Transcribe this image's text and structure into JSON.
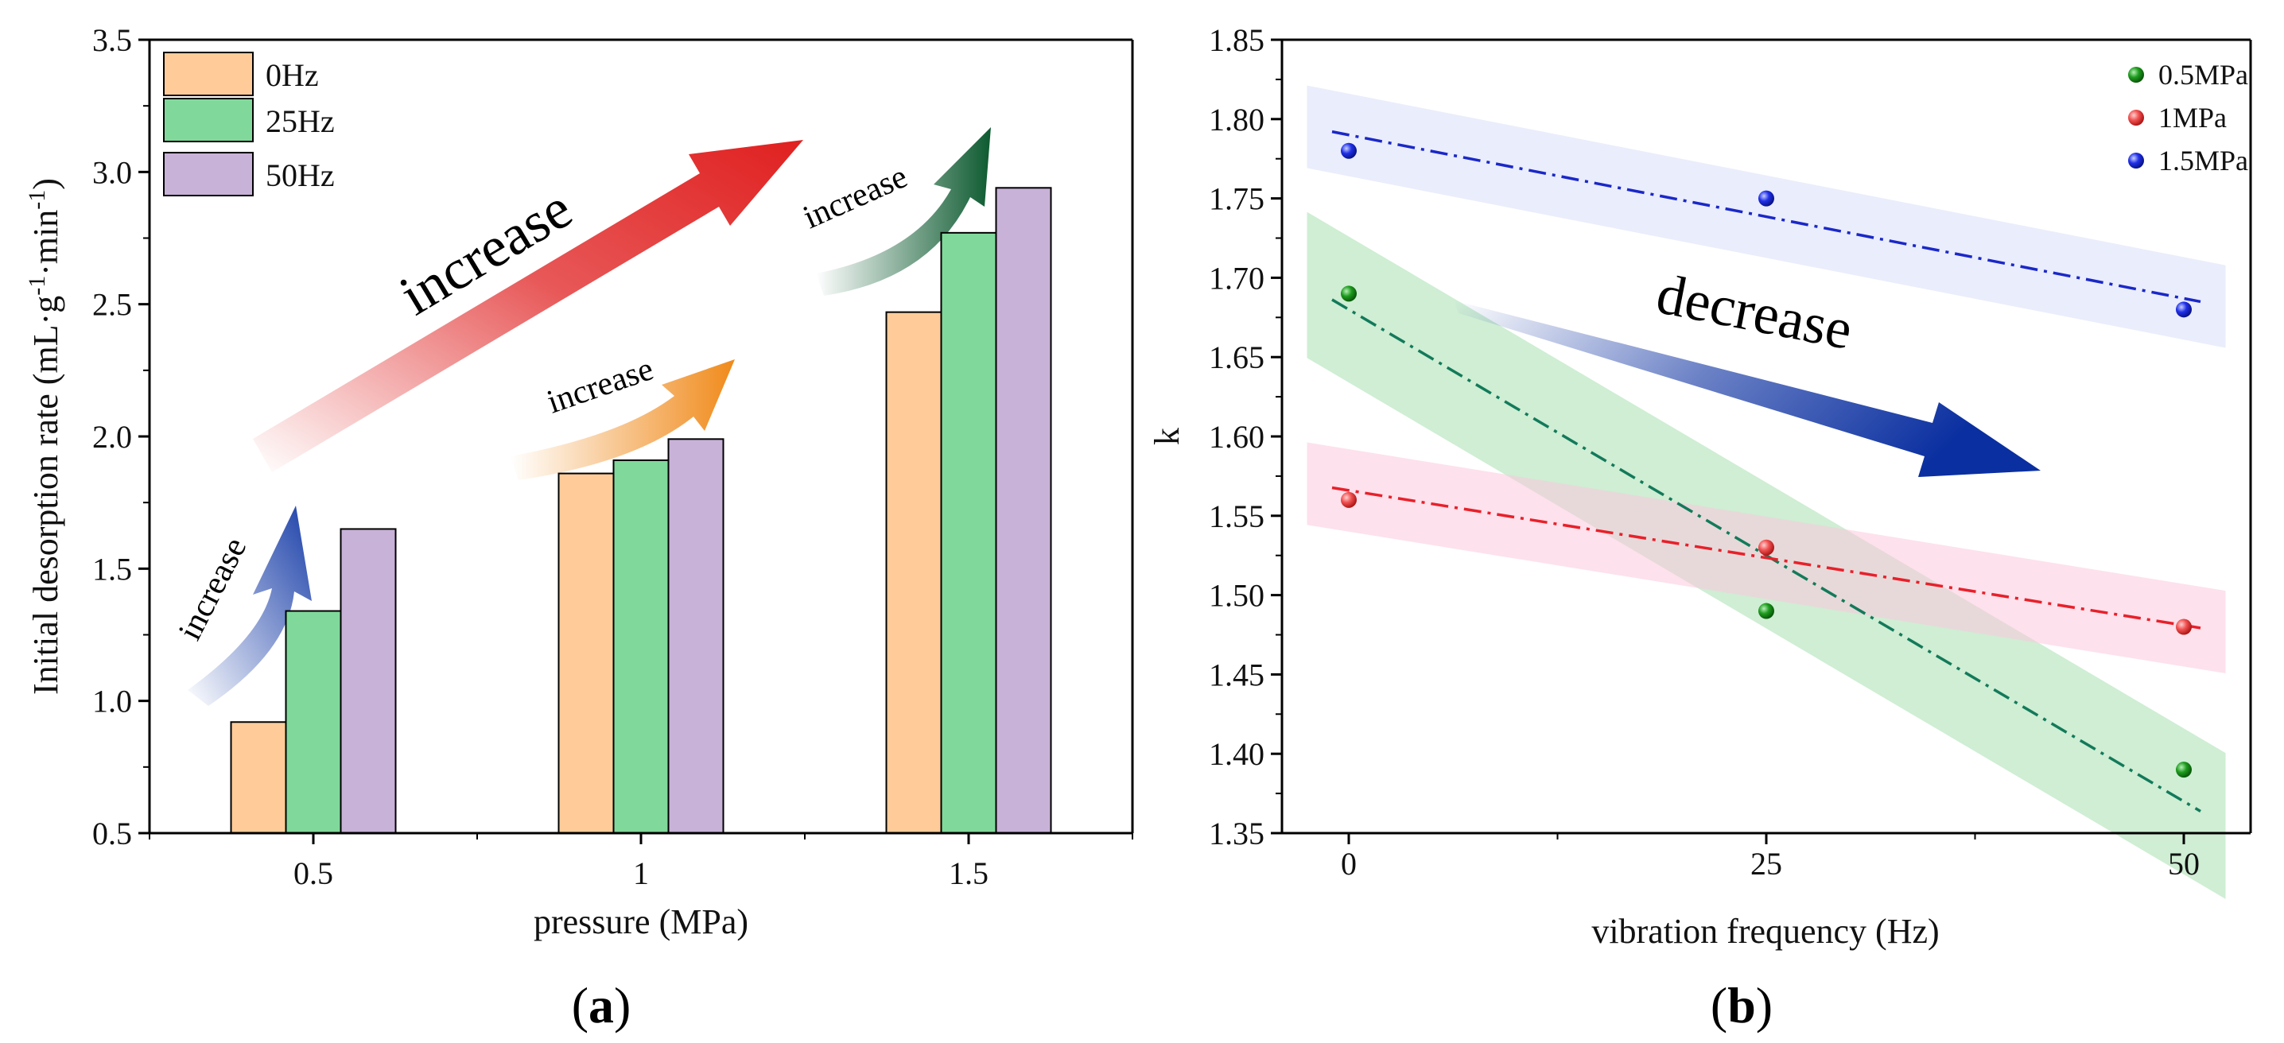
{
  "chart_data": [
    {
      "type": "bar",
      "panel_label": "(a)",
      "panel_letter": "a",
      "xlabel": "pressure (MPa)",
      "ylabel": "Initial desorption rate (mL·g⁻¹·min⁻¹)",
      "ylabel_parts": {
        "pre": "Initial desorption rate (mL·g",
        "sup1": "-1",
        "mid": "·min",
        "sup2": "-1",
        "post": ")"
      },
      "categories": [
        "0.5",
        "1",
        "1.5"
      ],
      "ylim": [
        0.5,
        3.5
      ],
      "yticks": [
        "0.5",
        "1.0",
        "1.5",
        "2.0",
        "2.5",
        "3.0",
        "3.5"
      ],
      "series": [
        {
          "name": "0Hz",
          "color": "#FFCC99",
          "values": [
            0.92,
            1.86,
            2.47
          ]
        },
        {
          "name": "25Hz",
          "color": "#80D99B",
          "values": [
            1.34,
            1.91,
            2.77
          ]
        },
        {
          "name": "50Hz",
          "color": "#C8B2D8",
          "values": [
            1.65,
            1.99,
            2.94
          ]
        }
      ],
      "legend_position": "top-left",
      "annotations": [
        {
          "text": "increase",
          "size": "big",
          "arrow_color": "#E02020"
        },
        {
          "text": "increase",
          "size": "small",
          "arrow_color": "#1A3FA8"
        },
        {
          "text": "increase",
          "size": "small",
          "arrow_color": "#F08A1A"
        },
        {
          "text": "increase",
          "size": "small",
          "arrow_color": "#0D5A30"
        }
      ]
    },
    {
      "type": "scatter",
      "panel_label": "(b)",
      "panel_letter": "b",
      "xlabel": "vibration frequency (Hz)",
      "ylabel": "k",
      "xlim": [
        -4,
        54
      ],
      "xticks": [
        0,
        25,
        50
      ],
      "xtick_labels": [
        "0",
        "25",
        "50"
      ],
      "ylim": [
        1.35,
        1.85
      ],
      "yticks": [
        "1.35",
        "1.40",
        "1.45",
        "1.50",
        "1.55",
        "1.60",
        "1.65",
        "1.70",
        "1.75",
        "1.80",
        "1.85"
      ],
      "series": [
        {
          "name": "0.5MPa",
          "color": "#1E8C1E",
          "line_color": "#127A5A",
          "band_color": "#A8E0B0",
          "x": [
            0,
            25,
            50
          ],
          "values": [
            1.69,
            1.49,
            1.39
          ],
          "fit": [
            1.68,
            1.37
          ]
        },
        {
          "name": "1MPa",
          "color": "#F04848",
          "line_color": "#E8202A",
          "band_color": "#FBC8DC",
          "x": [
            0,
            25,
            50
          ],
          "values": [
            1.56,
            1.53,
            1.48
          ],
          "fit": [
            1.566,
            1.481
          ]
        },
        {
          "name": "1.5MPa",
          "color": "#1A28E0",
          "line_color": "#1A28C8",
          "band_color": "#D8DEF8",
          "x": [
            0,
            25,
            50
          ],
          "values": [
            1.78,
            1.75,
            1.68
          ],
          "fit": [
            1.79,
            1.687
          ]
        }
      ],
      "legend_position": "top-right",
      "annotations": [
        {
          "text": "decrease",
          "arrow_color": "#0A2FA0"
        }
      ]
    }
  ]
}
